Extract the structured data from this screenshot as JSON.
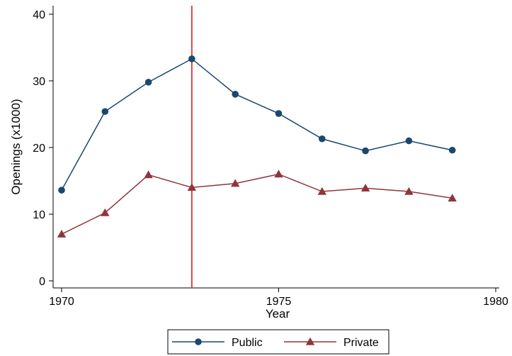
{
  "chart_data": {
    "type": "line",
    "title": "",
    "xlabel": "Year",
    "ylabel": "Openings (x1000)",
    "x": [
      1970,
      1971,
      1972,
      1973,
      1974,
      1975,
      1976,
      1977,
      1978,
      1979
    ],
    "xlim": [
      1970,
      1980
    ],
    "ylim": [
      0,
      40
    ],
    "xticks": [
      "1970",
      "1975",
      "1980"
    ],
    "yticks": [
      "0",
      "10",
      "20",
      "30",
      "40"
    ],
    "grid": false,
    "legend_position": "bottom",
    "reference_line": {
      "x": 1973,
      "color": "#e41a1c"
    },
    "series": [
      {
        "name": "Public",
        "marker": "circle",
        "color": "#1a476f",
        "values": [
          13.6,
          25.4,
          29.8,
          33.3,
          28.0,
          25.1,
          21.3,
          19.5,
          21.0,
          19.6
        ]
      },
      {
        "name": "Private",
        "marker": "triangle",
        "color": "#90353b",
        "values": [
          7.0,
          10.2,
          15.9,
          14.0,
          14.6,
          16.0,
          13.4,
          13.9,
          13.4,
          12.4
        ]
      }
    ]
  }
}
